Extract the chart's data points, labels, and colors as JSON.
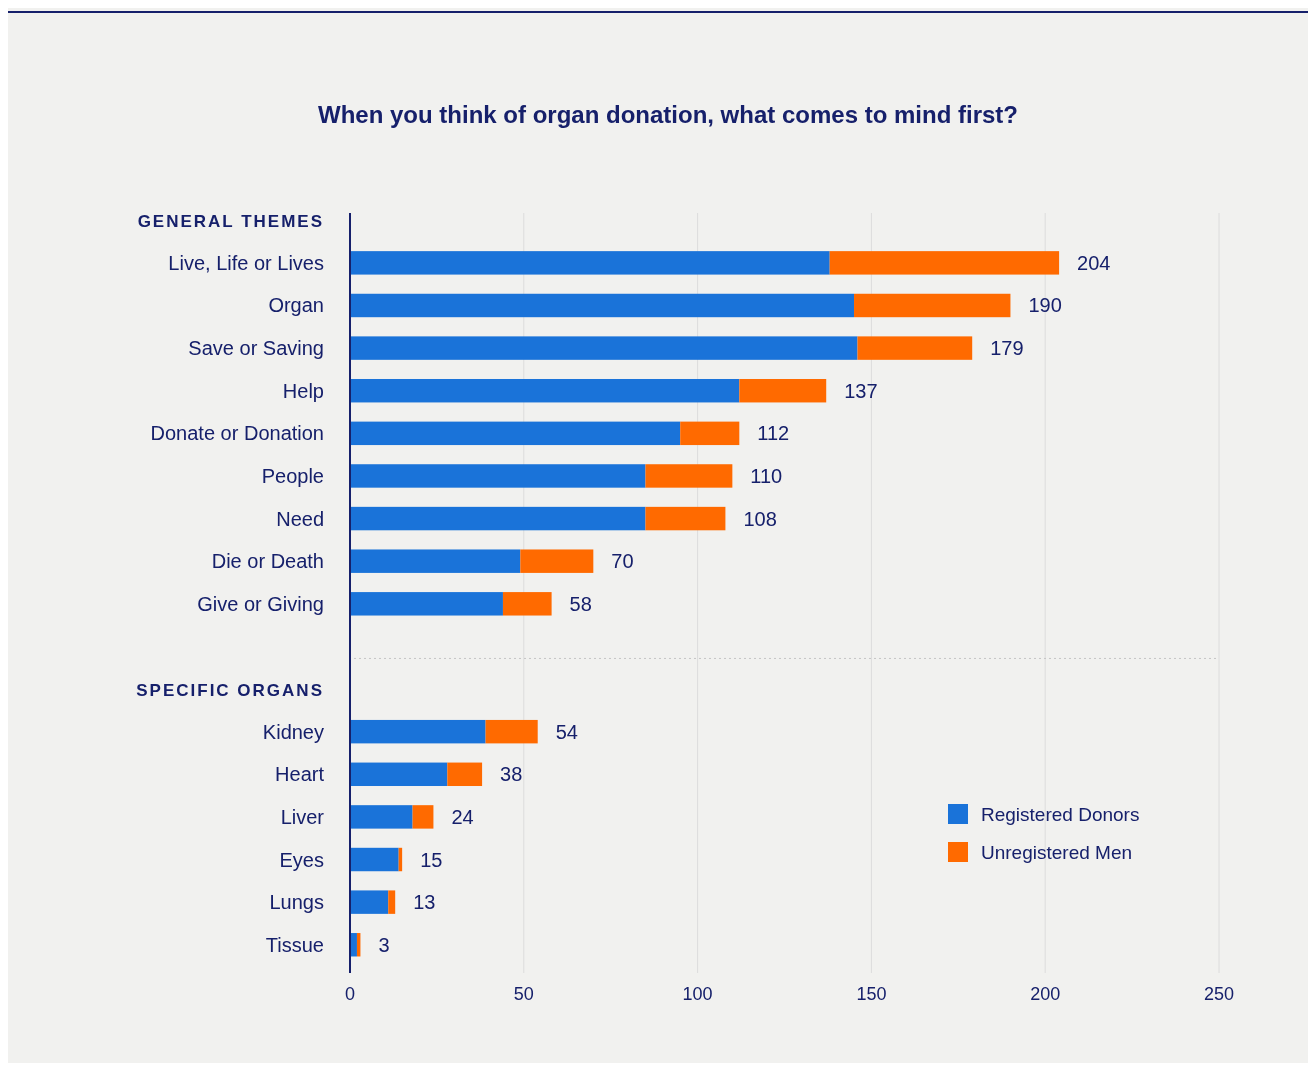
{
  "chart_data": {
    "type": "bar",
    "orientation": "horizontal",
    "stacked": true,
    "title": "When you think of organ donation, what comes to mind first?",
    "categories": [
      null,
      "Live, Life or Lives",
      "Organ",
      "Save or Saving",
      "Help",
      "Donate or Donation",
      "People",
      "Need",
      "Die or Death",
      "Give or Giving",
      null,
      null,
      "Kidney",
      "Heart",
      "Liver",
      "Eyes",
      "Lungs",
      "Tissue"
    ],
    "series": [
      {
        "name": "Registered Donors",
        "color": "#1a73d9",
        "values": [
          null,
          138,
          145,
          146,
          112,
          95,
          85,
          85,
          49,
          44,
          null,
          null,
          39,
          28,
          18,
          14,
          11,
          2
        ]
      },
      {
        "name": "Unregistered Men",
        "color": "#ff6a00",
        "values": [
          null,
          66,
          45,
          33,
          25,
          17,
          25,
          23,
          21,
          14,
          null,
          null,
          15,
          10,
          6,
          1,
          2,
          1
        ]
      }
    ],
    "totals": [
      null,
      "204",
      "190",
      "179",
      "137",
      "112",
      "110",
      "108",
      "70",
      "58",
      null,
      null,
      "54",
      "38",
      "24",
      "15",
      "13",
      "3"
    ],
    "annotations": [
      "GENERAL THEMES",
      "SPECIFIC ORGANS"
    ],
    "xlim": [
      0,
      250
    ],
    "xticks": [
      0,
      50,
      100,
      150,
      200,
      250
    ],
    "grid": "x",
    "legend": "bottom right"
  }
}
